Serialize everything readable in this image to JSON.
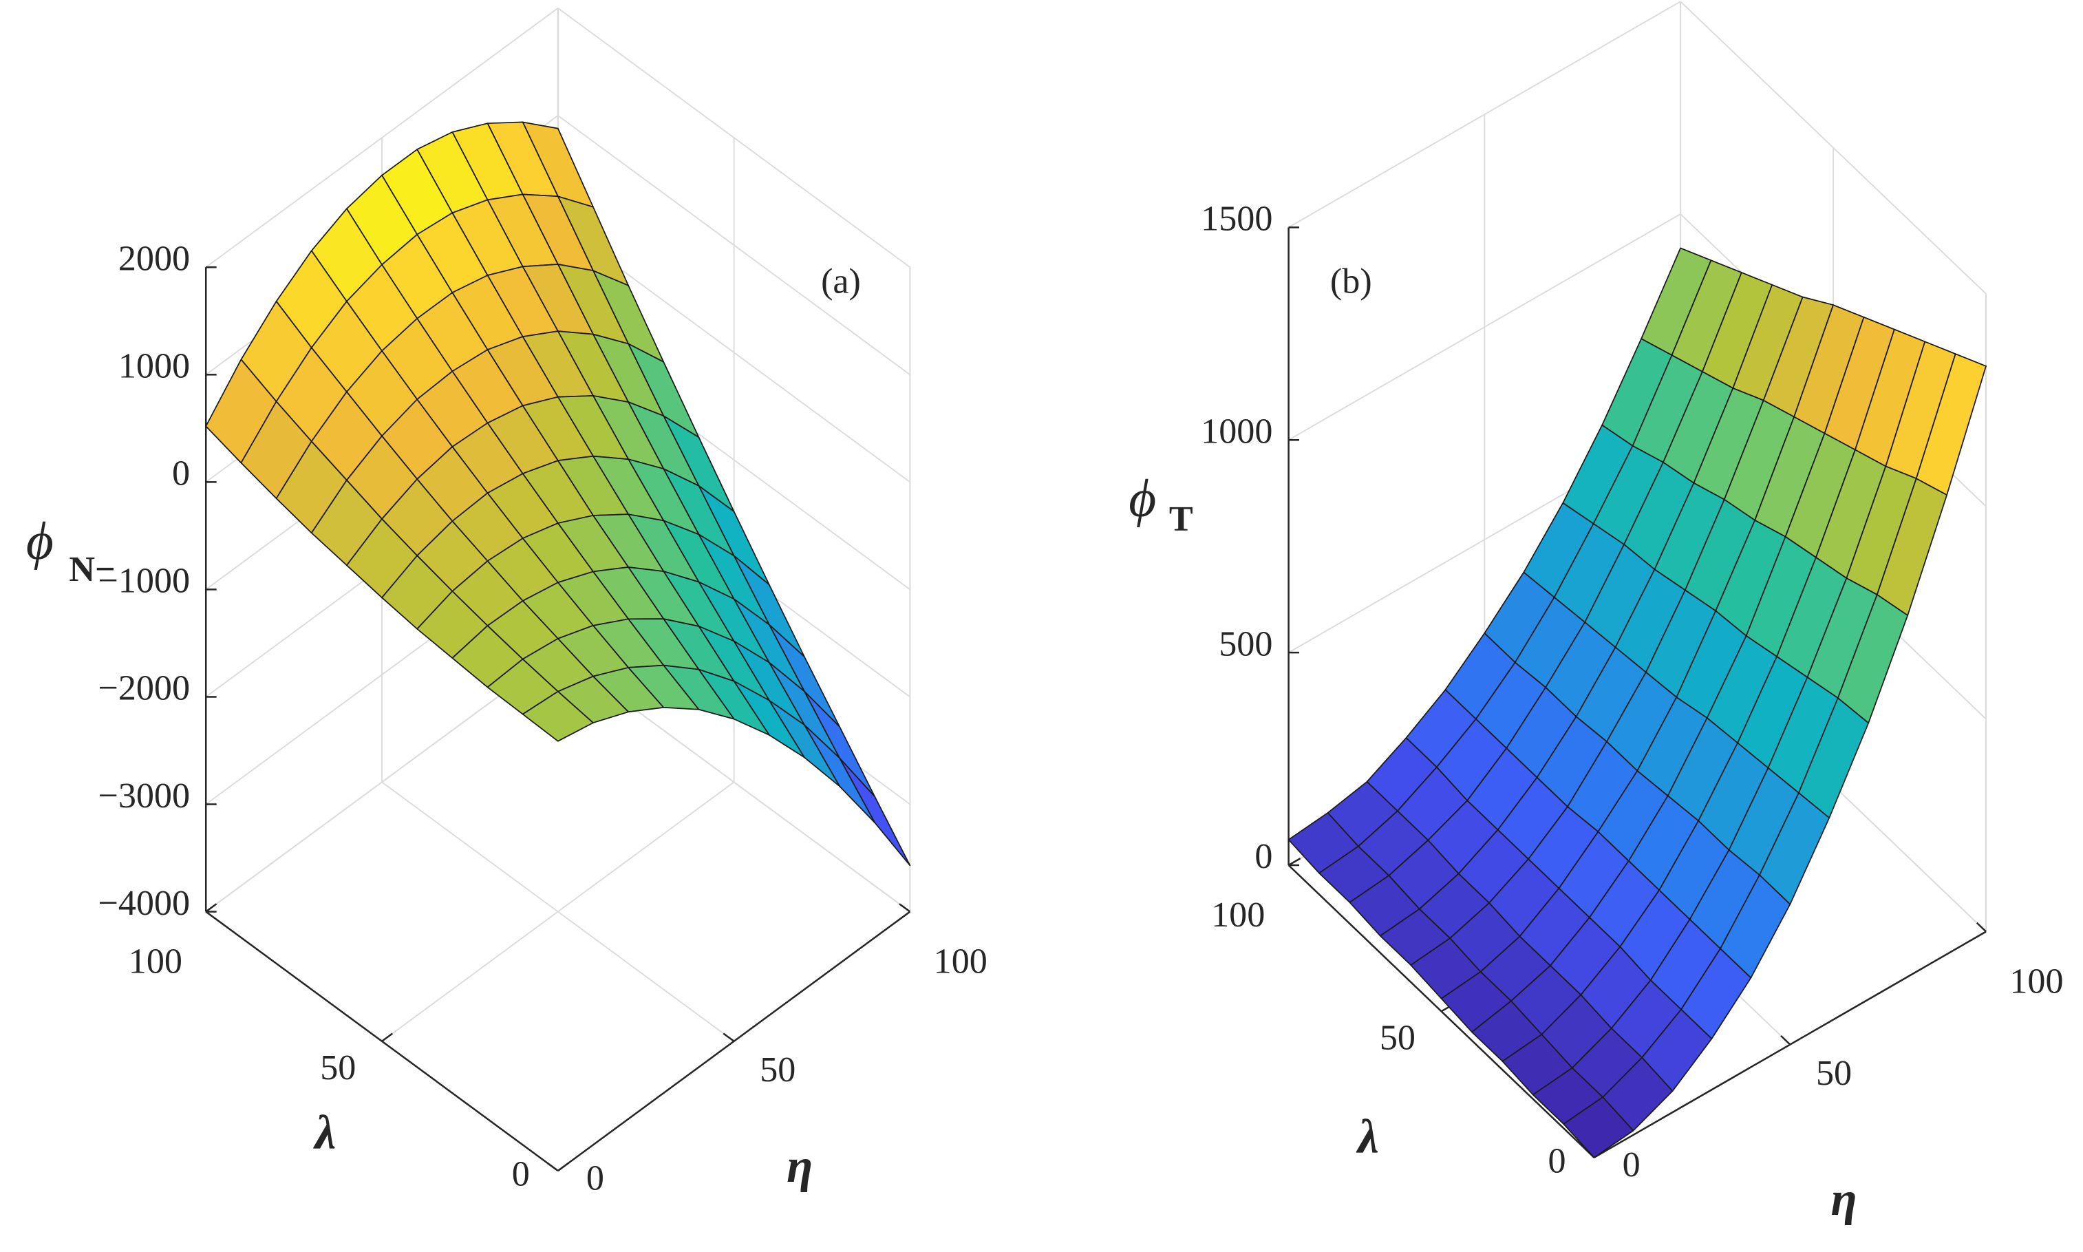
{
  "chart_data": [
    {
      "type": "surface",
      "annotation": "(a)",
      "zlabel": "ϕ",
      "zlabel_sub": "N−",
      "xlabel": "η",
      "ylabel": "λ",
      "x": [
        0,
        10,
        20,
        30,
        40,
        50,
        60,
        70,
        80,
        90,
        100
      ],
      "y": [
        0,
        10,
        20,
        30,
        40,
        50,
        60,
        70,
        80,
        90,
        100
      ],
      "z": [
        [
          0,
          -70,
          -210,
          -410,
          -670,
          -1000,
          -1390,
          -1840,
          -2350,
          -2930,
          -3570
        ],
        [
          10,
          -20,
          -120,
          -280,
          -500,
          -780,
          -1130,
          -1550,
          -2020,
          -2570,
          -3170
        ],
        [
          20,
          40,
          -10,
          -130,
          -310,
          -550,
          -860,
          -1240,
          -1680,
          -2190,
          -2760
        ],
        [
          50,
          110,
          100,
          30,
          -110,
          -310,
          -590,
          -930,
          -1330,
          -1810,
          -2350
        ],
        [
          80,
          190,
          230,
          200,
          100,
          -70,
          -300,
          -600,
          -970,
          -1410,
          -1920
        ],
        [
          130,
          280,
          360,
          380,
          320,
          200,
          0,
          -270,
          -600,
          -1000,
          -1480
        ],
        [
          190,
          380,
          510,
          570,
          550,
          470,
          310,
          80,
          -220,
          -590,
          -1030
        ],
        [
          250,
          500,
          670,
          770,
          790,
          750,
          630,
          440,
          170,
          -160,
          -570
        ],
        [
          330,
          620,
          840,
          980,
          1040,
          1040,
          960,
          800,
          580,
          280,
          -100
        ],
        [
          420,
          750,
          1010,
          1200,
          1300,
          1340,
          1300,
          1180,
          990,
          730,
          390
        ],
        [
          520,
          900,
          1200,
          1430,
          1580,
          1650,
          1650,
          1570,
          1410,
          1180,
          880
        ]
      ],
      "xlim": [
        0,
        100
      ],
      "ylim": [
        0,
        100
      ],
      "zlim": [
        -4000,
        2000
      ],
      "xticks": [
        0,
        50,
        100
      ],
      "yticks": [
        0,
        50,
        100
      ],
      "zticks": [
        {
          "value": -4000,
          "label": "−4000"
        },
        {
          "value": -3000,
          "label": "−3000"
        },
        {
          "value": -2000,
          "label": "−2000"
        },
        {
          "value": -1000,
          "label": "−1000"
        },
        0,
        1000,
        2000
      ],
      "grid": true,
      "colormap": [
        "#3e26a8",
        "#4354f5",
        "#2c7cf0",
        "#1e9bd8",
        "#10b1c3",
        "#26bf9e",
        "#6bc86f",
        "#b4c43b",
        "#f0ba39",
        "#fcd22f",
        "#f9fb15"
      ]
    },
    {
      "type": "surface",
      "annotation": "(b)",
      "zlabel": "ϕ",
      "zlabel_sub": "T",
      "xlabel": "η",
      "ylabel": "λ",
      "x": [
        0,
        10,
        20,
        30,
        40,
        50,
        60,
        70,
        80,
        90,
        100
      ],
      "y": [
        0,
        10,
        20,
        30,
        40,
        50,
        60,
        70,
        80,
        90,
        100
      ],
      "z": [
        [
          0,
          10,
          50,
          120,
          210,
          330,
          480,
          650,
          850,
          1080,
          1330
        ],
        [
          10,
          20,
          60,
          120,
          210,
          330,
          470,
          640,
          830,
          1050,
          1290
        ],
        [
          10,
          20,
          60,
          120,
          210,
          320,
          460,
          620,
          800,
          1010,
          1250
        ],
        [
          20,
          30,
          70,
          130,
          210,
          320,
          450,
          600,
          780,
          980,
          1210
        ],
        [
          20,
          40,
          70,
          130,
          210,
          310,
          440,
          580,
          760,
          950,
          1170
        ],
        [
          30,
          40,
          70,
          130,
          210,
          300,
          420,
          570,
          730,
          920,
          1130
        ],
        [
          40,
          50,
          80,
          130,
          200,
          300,
          410,
          550,
          710,
          890,
          1080
        ],
        [
          40,
          50,
          80,
          130,
          200,
          290,
          400,
          530,
          680,
          850,
          1040
        ],
        [
          50,
          60,
          90,
          130,
          200,
          290,
          390,
          520,
          660,
          820,
          1000
        ],
        [
          50,
          60,
          90,
          140,
          200,
          280,
          380,
          500,
          630,
          790,
          960
        ],
        [
          60,
          70,
          90,
          140,
          200,
          280,
          370,
          480,
          610,
          760,
          920
        ]
      ],
      "xlim": [
        0,
        100
      ],
      "ylim": [
        0,
        100
      ],
      "zlim": [
        0,
        1500
      ],
      "xticks": [
        0,
        50,
        100
      ],
      "yticks": [
        0,
        50,
        100
      ],
      "zticks": [
        0,
        500,
        1000,
        1500
      ],
      "grid": true,
      "colormap": [
        "#3e26a8",
        "#4354f5",
        "#2c7cf0",
        "#1e9bd8",
        "#10b1c3",
        "#26bf9e",
        "#6bc86f",
        "#b4c43b",
        "#f0ba39",
        "#fcd22f",
        "#f9fb15"
      ]
    }
  ]
}
